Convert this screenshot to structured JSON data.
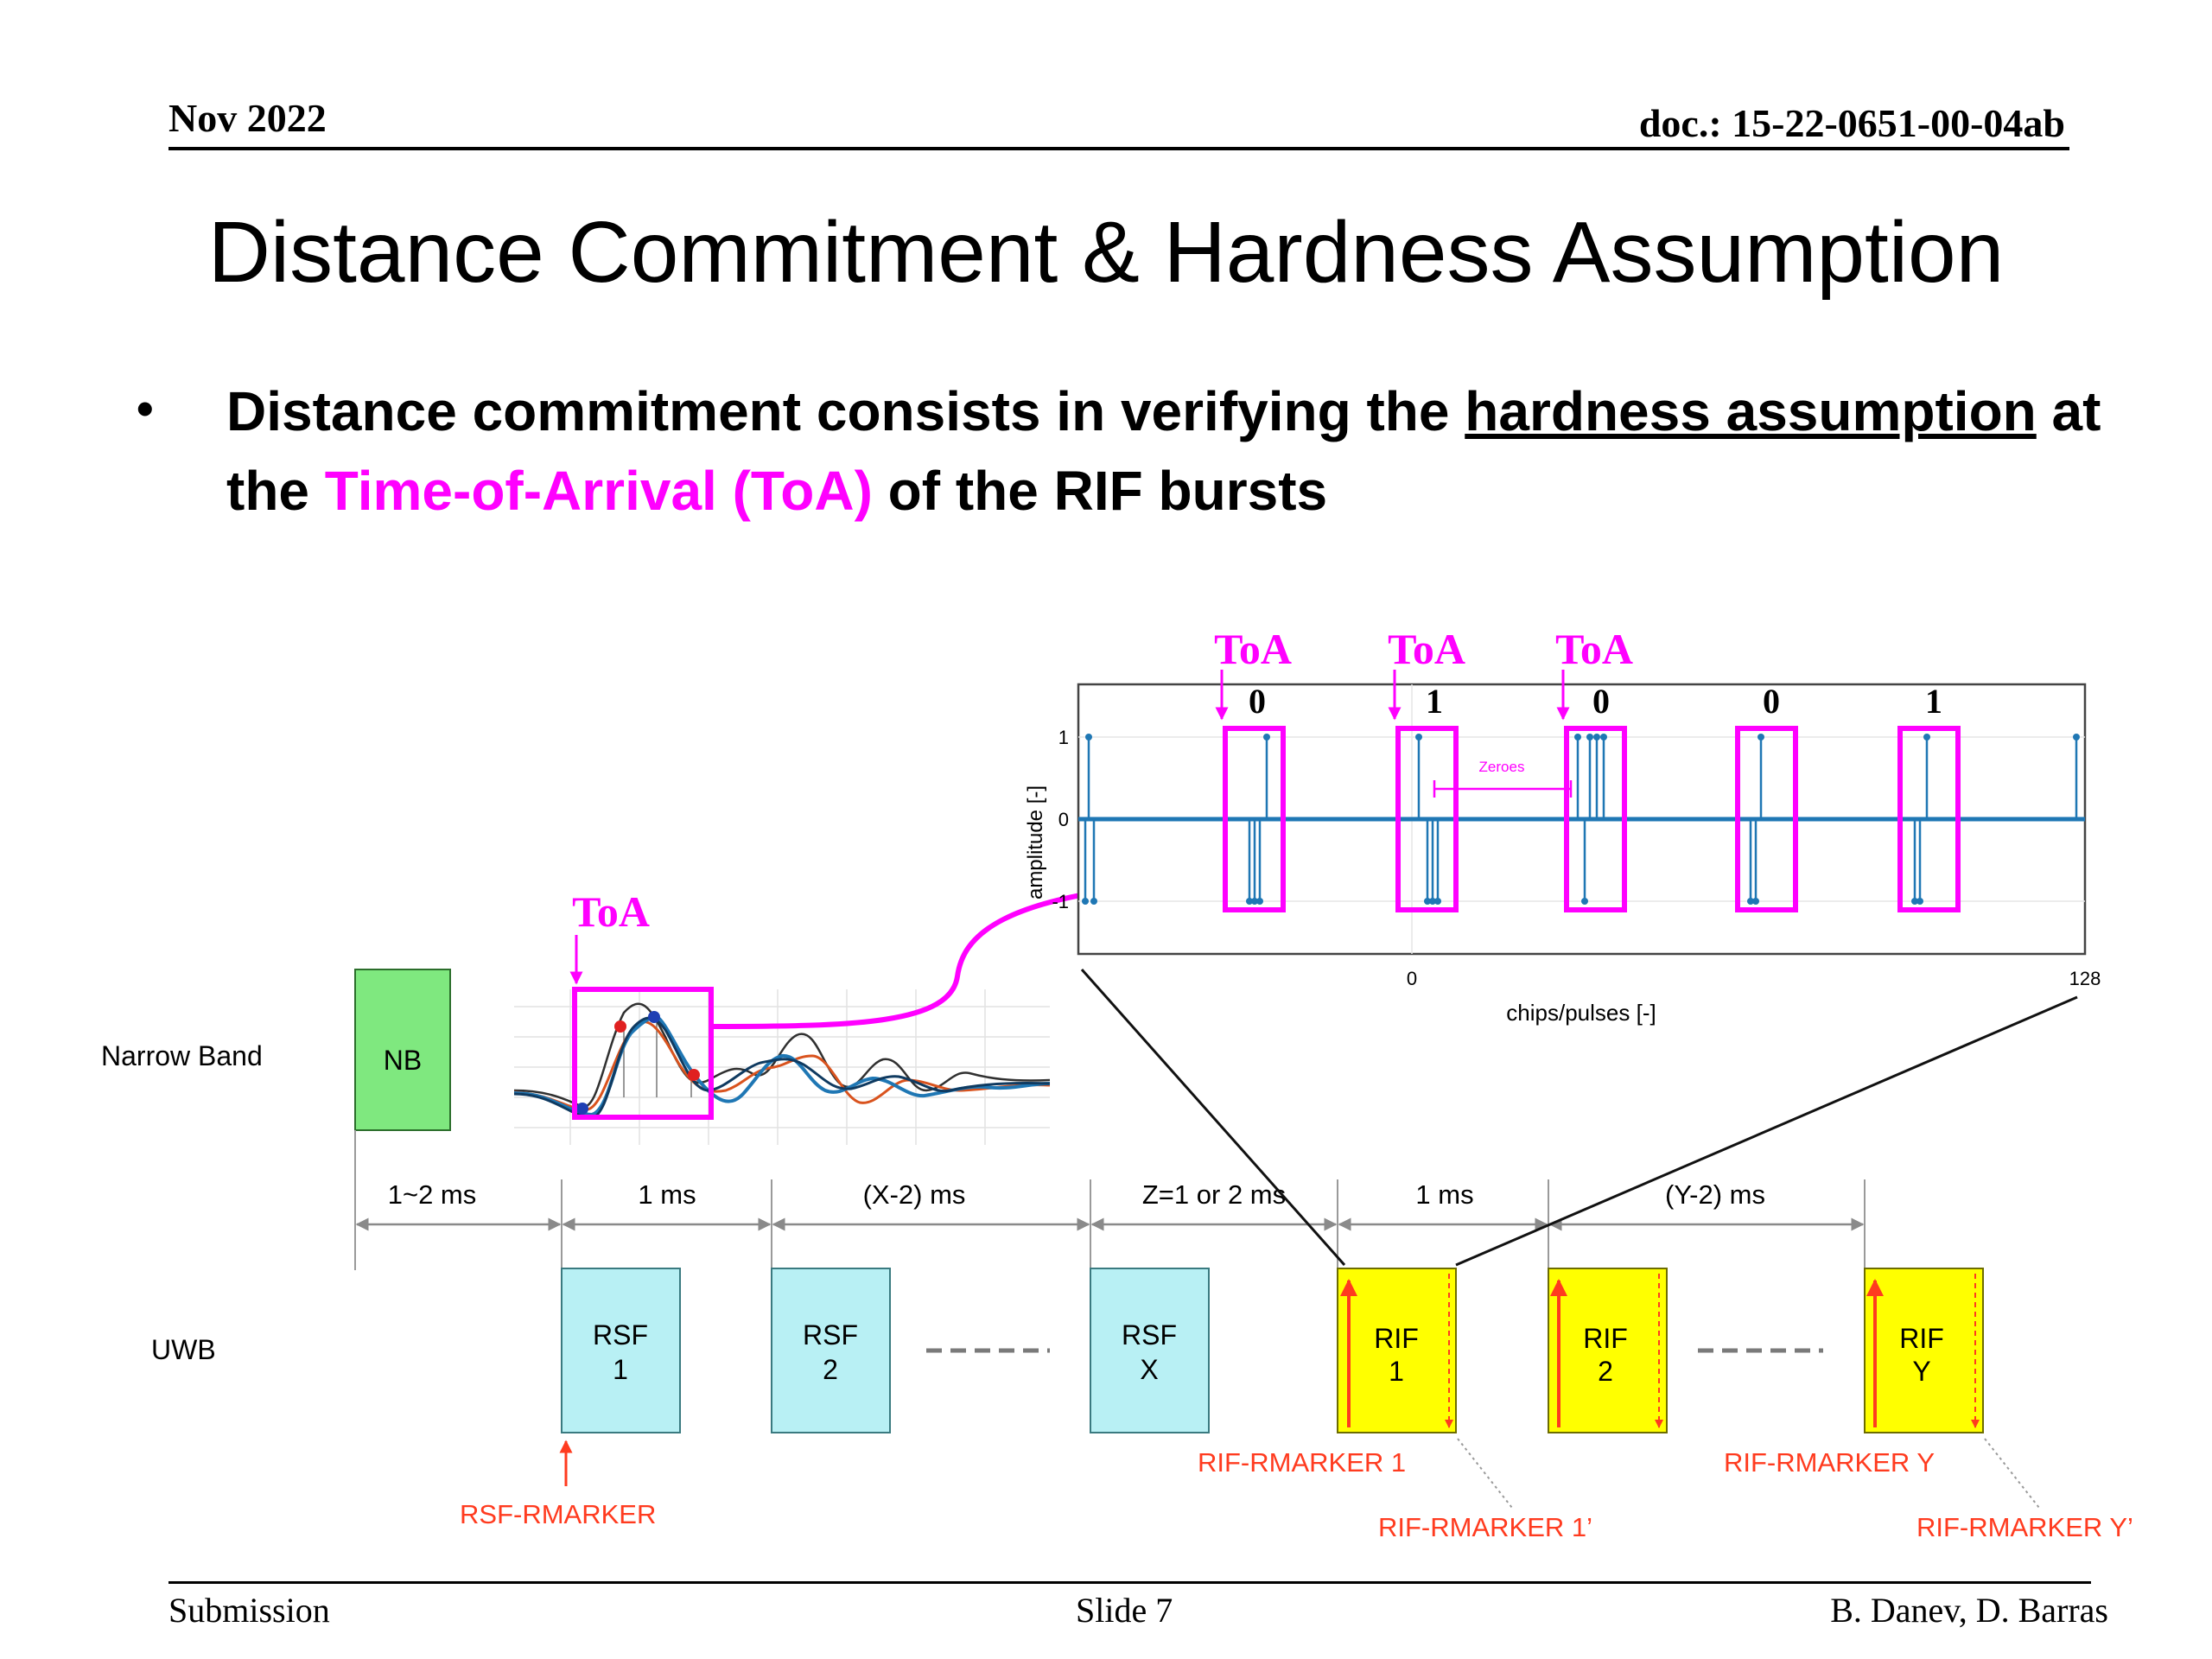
{
  "header": {
    "date": "Nov 2022",
    "doc": "doc.: 15-22-0651-00-04ab"
  },
  "title": "Distance Commitment & Hardness Assumption",
  "bullet": {
    "text1": "Distance commitment consists in verifying the ",
    "underlined": "hardness assumption",
    "text2": " at the ",
    "highlight": "Time-of-Arrival (ToA)",
    "text3": " of the RIF bursts"
  },
  "colors": {
    "magenta": "#ff00ff",
    "nb_green": "#7fe87f",
    "rsf_cyan": "#b8f0f4",
    "rif_yellow": "#ffff00",
    "marker_red": "#ff3b1f",
    "stem_blue": "#1f77b4"
  },
  "diagram": {
    "row_labels": {
      "narrow_band": "Narrow Band",
      "uwb": "UWB"
    },
    "nb_box": "NB",
    "toa_label": "ToA",
    "intervals": [
      "1~2 ms",
      "1 ms",
      "(X-2) ms",
      "Z=1 or 2 ms",
      "1 ms",
      "(Y-2) ms"
    ],
    "rsf_boxes": [
      {
        "line1": "RSF",
        "line2": "1"
      },
      {
        "line1": "RSF",
        "line2": "2"
      },
      {
        "line1": "RSF",
        "line2": "X"
      }
    ],
    "rif_boxes": [
      {
        "line1": "RIF",
        "line2": "1"
      },
      {
        "line1": "RIF",
        "line2": "2"
      },
      {
        "line1": "RIF",
        "line2": "Y"
      }
    ],
    "markers": {
      "rsf": "RSF-RMARKER",
      "rif1": "RIF-RMARKER 1",
      "rif1p": "RIF-RMARKER 1’",
      "rify": "RIF-RMARKER Y",
      "rifyp": "RIF-RMARKER Y’"
    },
    "inset": {
      "ylabel": "amplitude [-]",
      "xlabel": "chips/pulses [-]",
      "yticks": [
        "1",
        "0",
        "-1"
      ],
      "xticks": [
        "0",
        "128"
      ],
      "zeroes_label": "Zeroes",
      "bits": [
        "0",
        "1",
        "0",
        "0",
        "1"
      ],
      "toa_labels": [
        "ToA",
        "ToA",
        "ToA"
      ]
    }
  },
  "footer": {
    "left": "Submission",
    "center": "Slide 7",
    "right": "B. Danev, D. Barras"
  }
}
